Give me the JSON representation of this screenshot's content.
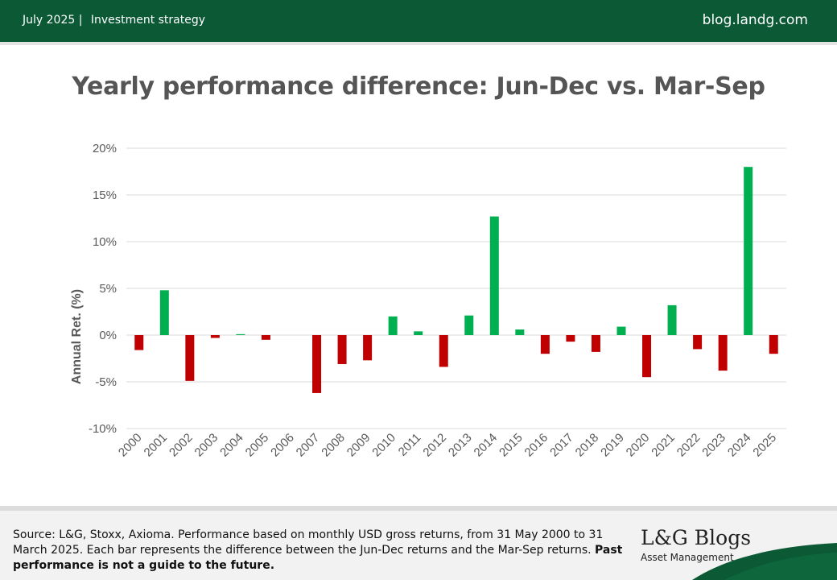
{
  "header": {
    "date": "July 2025",
    "separator": "|",
    "category": "Investment strategy",
    "site": "blog.landg.com"
  },
  "colors": {
    "header_bg": "#0b5a35",
    "positive": "#00b050",
    "negative": "#c00000",
    "grid": "#d9d9d9",
    "text": "#595959"
  },
  "chart_data": {
    "type": "bar",
    "title": "Yearly performance difference: Jun-Dec vs. Mar-Sep",
    "ylabel": "Annual Ret. (%)",
    "xlabel": "",
    "ylim": [
      -10,
      20
    ],
    "yticks": [
      20,
      15,
      10,
      5,
      0,
      -5,
      -10
    ],
    "ytick_labels": [
      "20%",
      "15%",
      "10%",
      "5%",
      "0%",
      "-5%",
      "-10%"
    ],
    "grid": true,
    "legend": "none",
    "categories": [
      "2000",
      "2001",
      "2002",
      "2003",
      "2004",
      "2005",
      "2006",
      "2007",
      "2008",
      "2009",
      "2010",
      "2011",
      "2012",
      "2013",
      "2014",
      "2015",
      "2016",
      "2017",
      "2018",
      "2019",
      "2020",
      "2021",
      "2022",
      "2023",
      "2024",
      "2025"
    ],
    "values": [
      -1.6,
      4.8,
      -4.9,
      -0.3,
      0.1,
      -0.5,
      0.0,
      -6.2,
      -3.1,
      -2.7,
      2.0,
      0.4,
      -3.4,
      2.1,
      12.7,
      0.6,
      -2.0,
      -0.7,
      -1.8,
      0.9,
      -4.5,
      3.2,
      -1.5,
      -3.8,
      18.0,
      -2.0
    ]
  },
  "footer": {
    "source_text": "Source: L&G, Stoxx, Axioma. Performance based on monthly USD gross returns, from 31 May 2000 to 31 March 2025. Each bar represents the difference between the Jun-Dec returns and the Mar-Sep returns. ",
    "disclaimer": "Past performance is not a guide to the future.",
    "logo_main": "L&G Blogs",
    "logo_sub": "Asset Management"
  }
}
